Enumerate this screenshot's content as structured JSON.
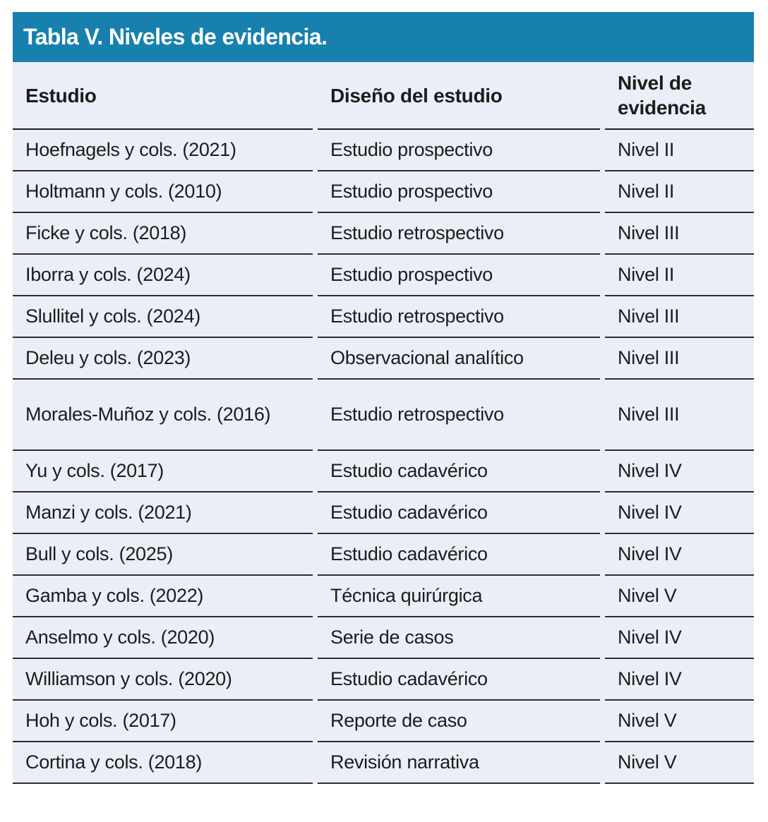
{
  "table": {
    "title": "Tabla V. Niveles de evidencia.",
    "colors": {
      "title_bar": "#1780ae",
      "title_text": "#ffffff",
      "body_background": "#eaeef6",
      "divider": "#2d2d2d",
      "text": "#1c1c1c"
    },
    "columns": [
      "Estudio",
      "Diseño del estudio",
      "Nivel de evidencia"
    ],
    "rows": [
      {
        "study": "Hoefnagels y cols. (2021)",
        "design": "Estudio prospectivo",
        "level": "Nivel II"
      },
      {
        "study": "Holtmann y cols. (2010)",
        "design": "Estudio prospectivo",
        "level": "Nivel II"
      },
      {
        "study": "Ficke y cols. (2018)",
        "design": "Estudio retrospectivo",
        "level": "Nivel III"
      },
      {
        "study": "Iborra y cols. (2024)",
        "design": "Estudio prospectivo",
        "level": "Nivel II"
      },
      {
        "study": "Slullitel y cols. (2024)",
        "design": "Estudio retrospectivo",
        "level": "Nivel III"
      },
      {
        "study": "Deleu y cols. (2023)",
        "design": "Observacional analítico",
        "level": "Nivel III"
      },
      {
        "study": "Morales-Muñoz y cols. (2016)",
        "design": "Estudio retrospectivo",
        "level": "Nivel III"
      },
      {
        "study": "Yu y cols. (2017)",
        "design": "Estudio cadavérico",
        "level": "Nivel IV"
      },
      {
        "study": "Manzi y cols. (2021)",
        "design": "Estudio cadavérico",
        "level": "Nivel IV"
      },
      {
        "study": "Bull y cols. (2025)",
        "design": "Estudio cadavérico",
        "level": "Nivel IV"
      },
      {
        "study": "Gamba y cols. (2022)",
        "design": "Técnica quirúrgica",
        "level": "Nivel V"
      },
      {
        "study": "Anselmo y cols. (2020)",
        "design": "Serie de casos",
        "level": "Nivel IV"
      },
      {
        "study": "Williamson y cols. (2020)",
        "design": "Estudio cadavérico",
        "level": "Nivel IV"
      },
      {
        "study": "Hoh y cols. (2017)",
        "design": "Reporte de caso",
        "level": "Nivel V"
      },
      {
        "study": "Cortina y cols. (2018)",
        "design": "Revisión narrativa",
        "level": "Nivel V"
      }
    ]
  }
}
